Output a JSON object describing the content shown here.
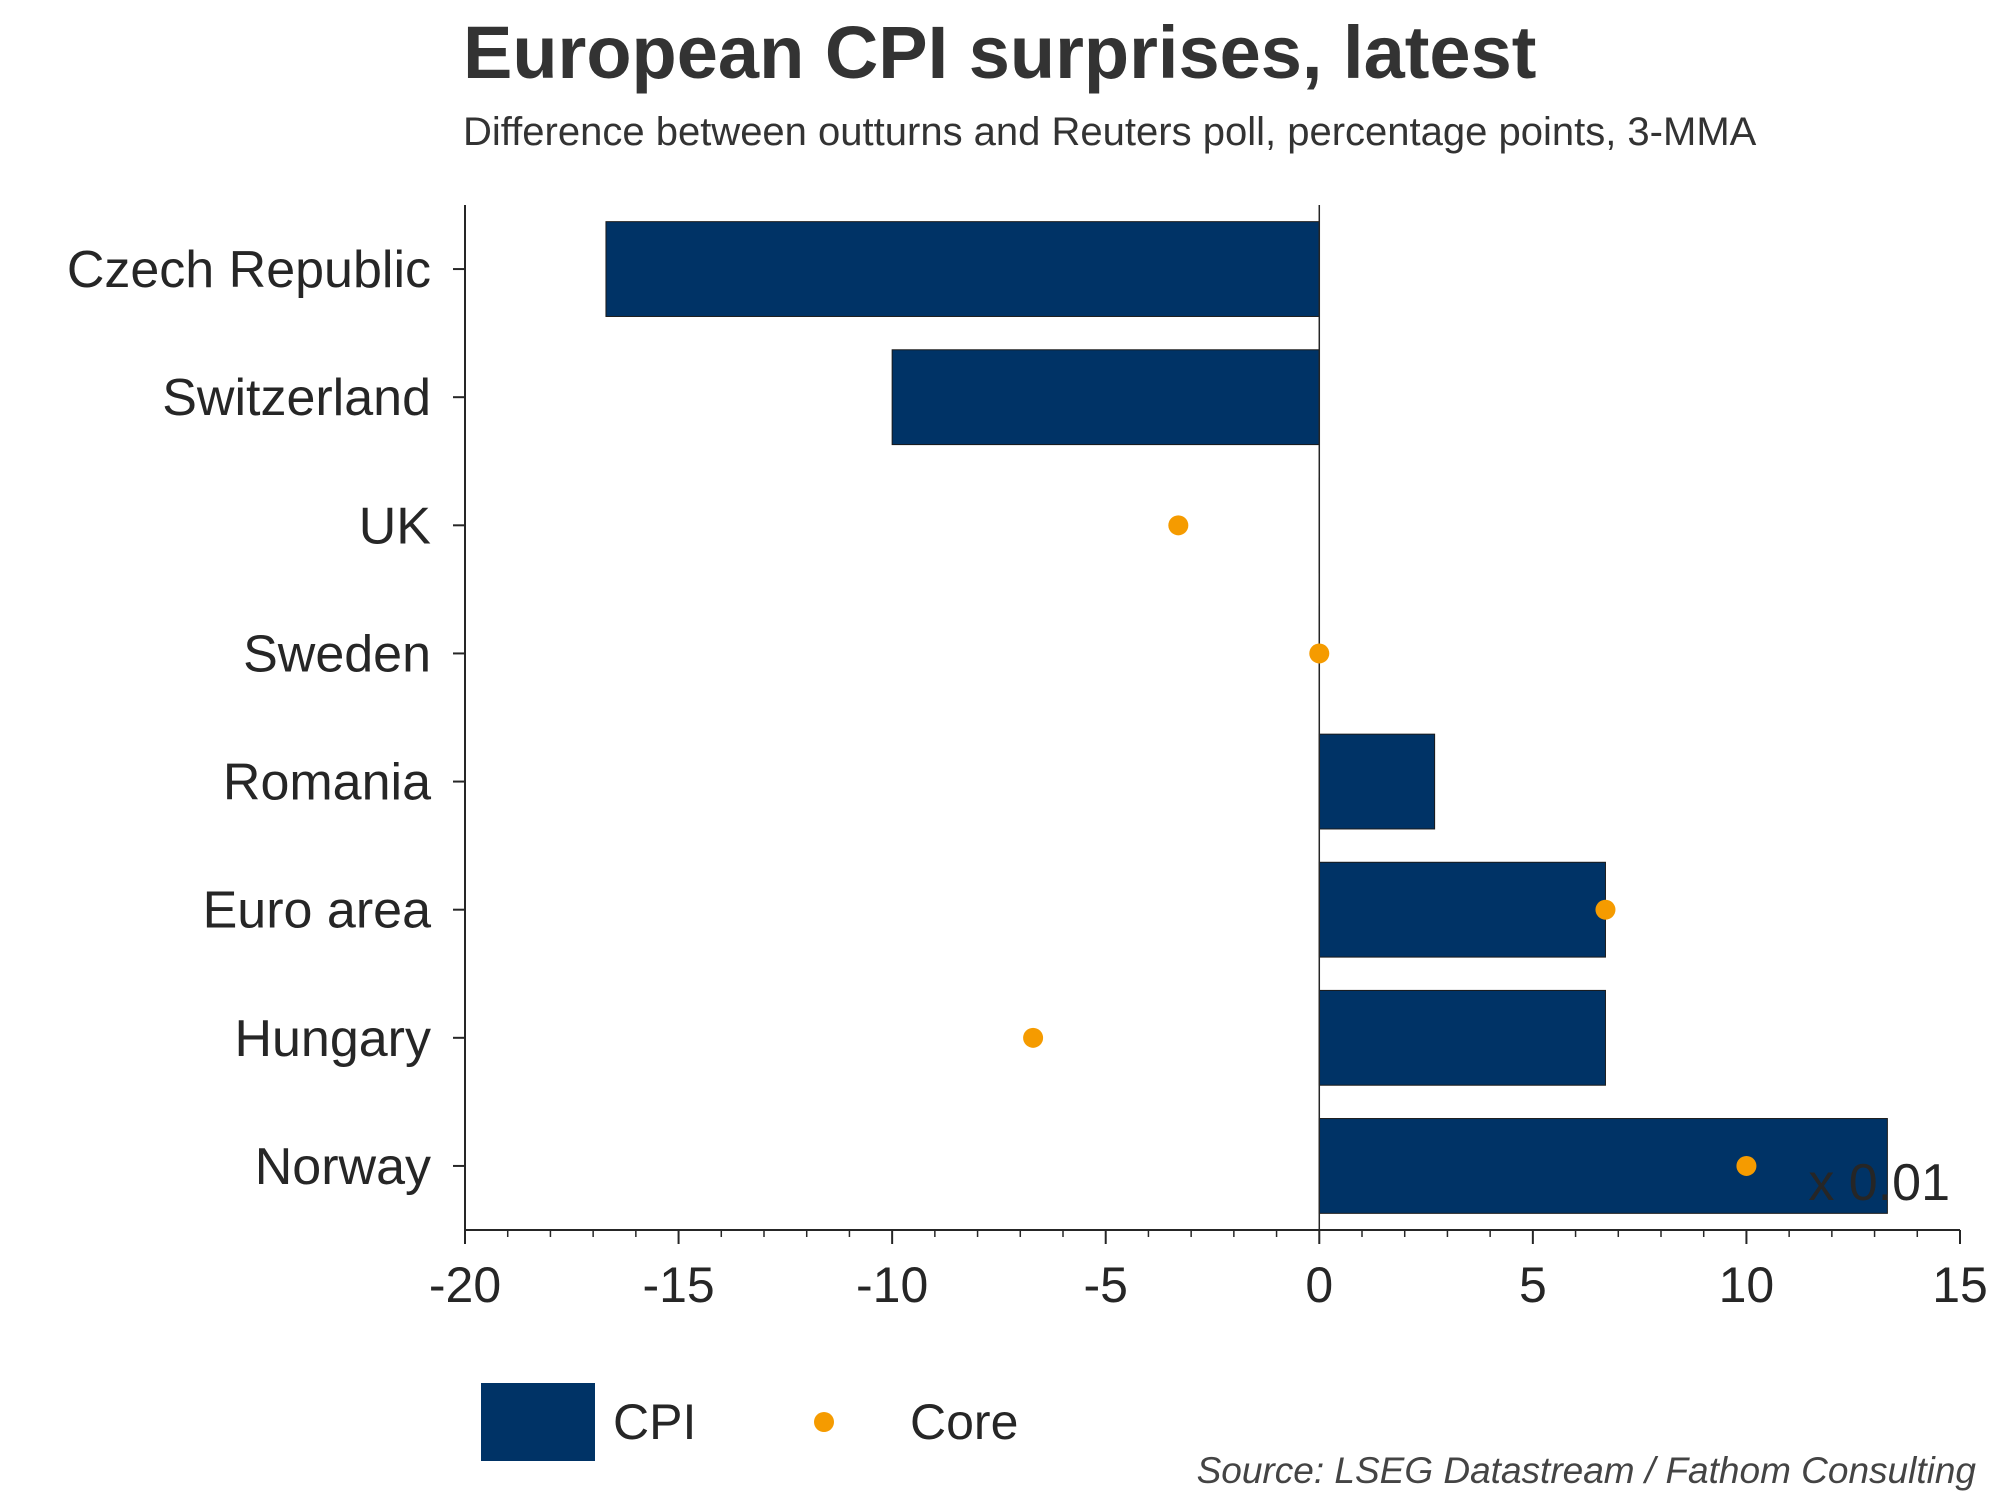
{
  "chart_data": {
    "type": "bar",
    "orientation": "horizontal",
    "title": "European CPI surprises, latest",
    "subtitle": "Difference between outturns and Reuters poll, percentage points, 3-MMA",
    "categories": [
      "Czech Republic",
      "Switzerland",
      "UK",
      "Sweden",
      "Romania",
      "Euro area",
      "Hungary",
      "Norway"
    ],
    "series": [
      {
        "name": "CPI",
        "kind": "bar",
        "color": "#003366",
        "values": [
          -16.7,
          -10.0,
          0,
          0,
          2.7,
          6.7,
          6.7,
          13.3
        ]
      },
      {
        "name": "Core",
        "kind": "dot",
        "color": "#F59B00",
        "values": [
          null,
          null,
          -3.3,
          0,
          null,
          6.7,
          -6.7,
          10.0
        ]
      }
    ],
    "xlim": [
      -20,
      15
    ],
    "xticks": [
      -20,
      -15,
      -10,
      -5,
      0,
      5,
      10,
      15
    ],
    "xtick_labels": [
      "-20",
      "-15",
      "-10",
      "-5",
      "0",
      "5",
      "10",
      "15"
    ],
    "scale_note": "x 0.01",
    "legend": {
      "position": "bottom-left",
      "items": [
        "CPI",
        "Core"
      ]
    },
    "source": "Source: LSEG Datastream / Fathom Consulting"
  }
}
